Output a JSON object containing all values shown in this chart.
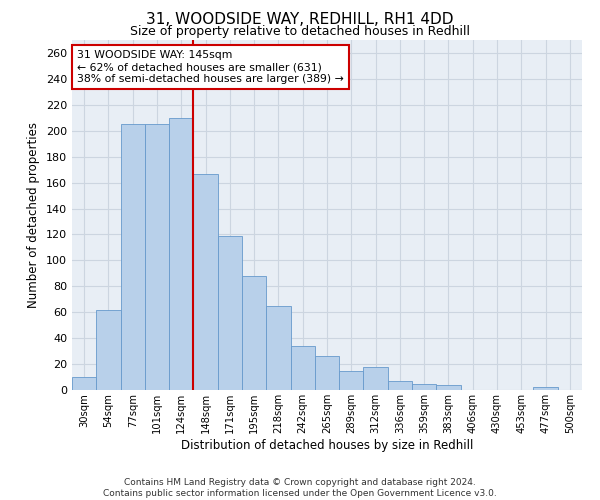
{
  "title1": "31, WOODSIDE WAY, REDHILL, RH1 4DD",
  "title2": "Size of property relative to detached houses in Redhill",
  "xlabel": "Distribution of detached houses by size in Redhill",
  "ylabel": "Number of detached properties",
  "bar_labels": [
    "30sqm",
    "54sqm",
    "77sqm",
    "101sqm",
    "124sqm",
    "148sqm",
    "171sqm",
    "195sqm",
    "218sqm",
    "242sqm",
    "265sqm",
    "289sqm",
    "312sqm",
    "336sqm",
    "359sqm",
    "383sqm",
    "406sqm",
    "430sqm",
    "453sqm",
    "477sqm",
    "500sqm"
  ],
  "bar_values": [
    10,
    62,
    205,
    205,
    210,
    167,
    119,
    88,
    65,
    34,
    26,
    15,
    18,
    7,
    5,
    4,
    0,
    0,
    0,
    2,
    0
  ],
  "bar_color": "#b8d0ea",
  "bar_edgecolor": "#6699cc",
  "vline_x": 4.5,
  "vline_color": "#cc0000",
  "annotation_line1": "31 WOODSIDE WAY: 145sqm",
  "annotation_line2": "← 62% of detached houses are smaller (631)",
  "annotation_line3": "38% of semi-detached houses are larger (389) →",
  "annotation_box_edgecolor": "#cc0000",
  "footnote1": "Contains HM Land Registry data © Crown copyright and database right 2024.",
  "footnote2": "Contains public sector information licensed under the Open Government Licence v3.0.",
  "ylim": [
    0,
    270
  ],
  "yticks": [
    0,
    20,
    40,
    60,
    80,
    100,
    120,
    140,
    160,
    180,
    200,
    220,
    240,
    260
  ],
  "grid_color": "#ccd5e0",
  "bg_color": "#e8eef5"
}
